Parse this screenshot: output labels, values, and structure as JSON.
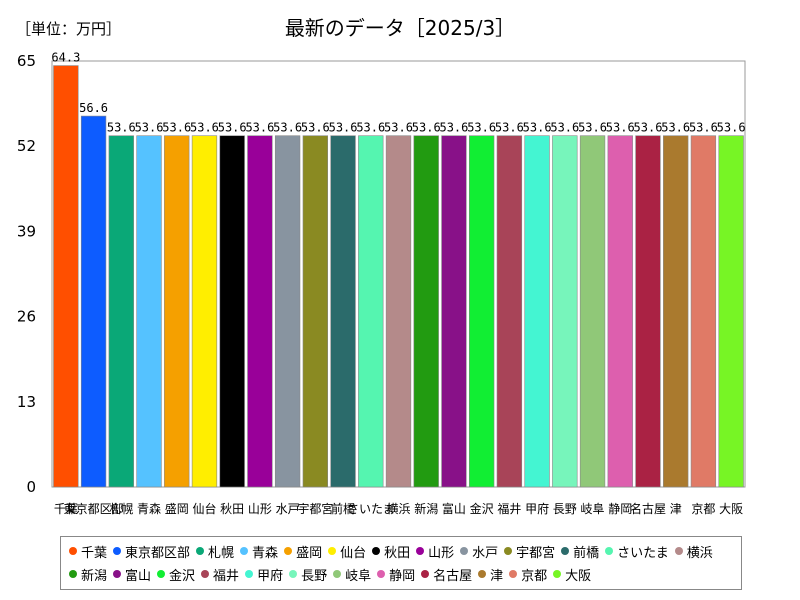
{
  "header": {
    "unit_label": "［単位：万円］",
    "title": "最新のデータ［2025/3］"
  },
  "chart_data": {
    "type": "bar",
    "categories": [
      "千葉",
      "東京都区部",
      "札幌",
      "青森",
      "盛岡",
      "仙台",
      "秋田",
      "山形",
      "水戸",
      "宇都宮",
      "前橋",
      "さいたま",
      "横浜",
      "新潟",
      "富山",
      "金沢",
      "福井",
      "甲府",
      "長野",
      "岐阜",
      "静岡",
      "名古屋",
      "津",
      "京都",
      "大阪"
    ],
    "values": [
      64.3,
      56.6,
      53.6,
      53.6,
      53.6,
      53.6,
      53.6,
      53.6,
      53.6,
      53.6,
      53.6,
      53.6,
      53.6,
      53.6,
      53.6,
      53.6,
      53.6,
      53.6,
      53.6,
      53.6,
      53.6,
      53.6,
      53.6,
      53.6,
      53.6
    ],
    "value_labels": [
      "64.3",
      "56.6",
      "53.6",
      "53.6",
      "53.6",
      "53.6",
      "53.6",
      "53.6",
      "53.6",
      "53.6",
      "53.6",
      "53.6",
      "53.6",
      "53.6",
      "53.6",
      "53.6",
      "53.6",
      "53.6",
      "53.6",
      "53.6",
      "53.6",
      "53.6",
      "53.6",
      "53.6",
      "53.6"
    ],
    "colors": [
      "#ff4f00",
      "#0d5cff",
      "#0aa877",
      "#55c2ff",
      "#f5a000",
      "#ffee00",
      "#000000",
      "#990099",
      "#8894a0",
      "#8a8a22",
      "#2b6b6b",
      "#55f5b0",
      "#b48a8a",
      "#229b11",
      "#881188",
      "#11ee33",
      "#a84458",
      "#44f5d2",
      "#77f5bb",
      "#90c878",
      "#dd5fae",
      "#aa2244",
      "#aa7a2e",
      "#e07a66",
      "#77f525"
    ],
    "yticks": [
      "0",
      "13",
      "26",
      "39",
      "52",
      "65"
    ],
    "ylim": [
      0,
      65
    ],
    "grid": false,
    "legend_position": "bottom"
  }
}
